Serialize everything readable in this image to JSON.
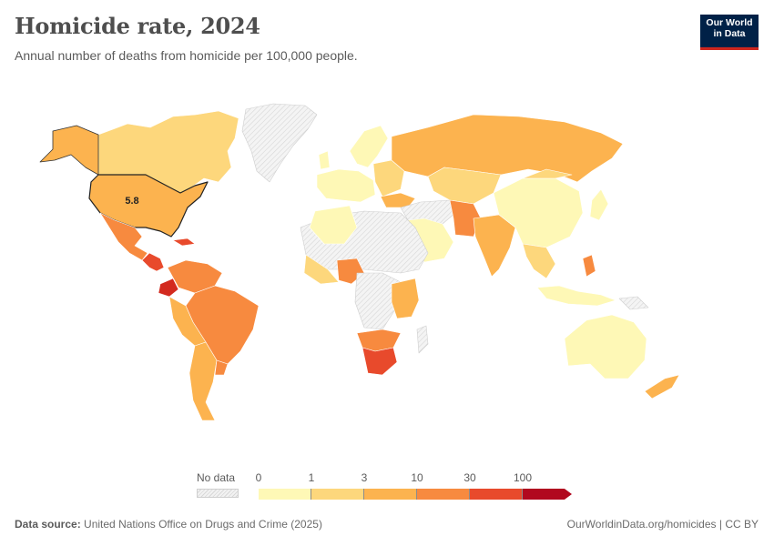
{
  "header": {
    "title": "Homicide rate, 2024",
    "subtitle": "Annual number of deaths from homicide per 100,000 people."
  },
  "logo": {
    "line1": "Our World",
    "line2": "in Data"
  },
  "map": {
    "highlight_label": "5.8",
    "highlight_country": "United States"
  },
  "legend": {
    "no_data_label": "No data",
    "ticks": [
      "0",
      "1",
      "3",
      "10",
      "30",
      "100"
    ],
    "colors": [
      "#fef8b6",
      "#fdd77c",
      "#fcb34f",
      "#f78a3f",
      "#e84a2c",
      "#b1081f"
    ]
  },
  "footer": {
    "source_label": "Data source:",
    "source_text": "United Nations Office on Drugs and Crime (2025)",
    "url": "OurWorldinData.org/homicides",
    "separator": " | ",
    "license": "CC BY"
  }
}
